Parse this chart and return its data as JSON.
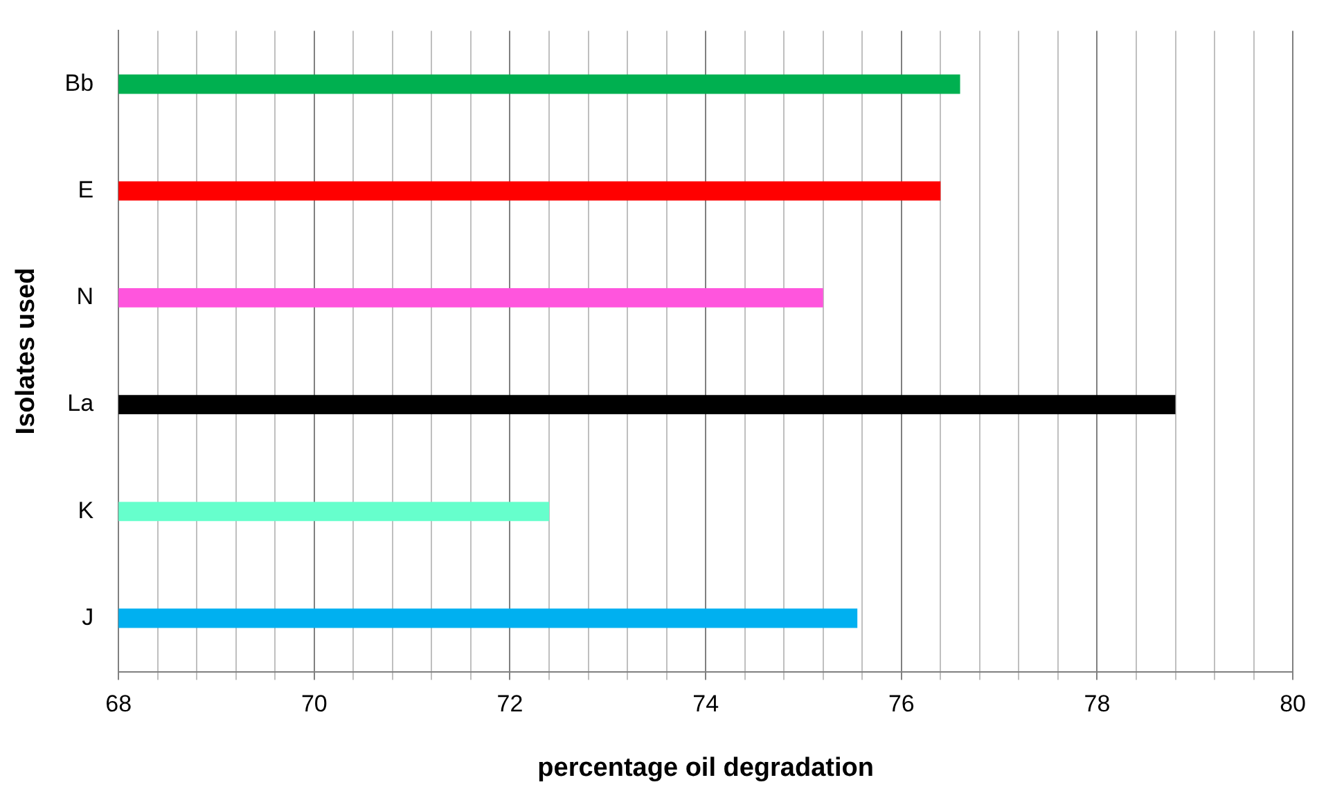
{
  "chart_data": {
    "type": "bar",
    "orientation": "horizontal",
    "xlabel": "percentage oil degradation",
    "ylabel": "Isolates used",
    "categories": [
      "Bb",
      "E",
      "N",
      "La",
      "K",
      "J"
    ],
    "values": [
      76.6,
      76.4,
      75.2,
      78.8,
      72.4,
      75.55
    ],
    "colors": [
      "#00b050",
      "#ff0000",
      "#ff55dd",
      "#000000",
      "#66ffcc",
      "#00b0f0"
    ],
    "xlim": [
      68,
      80
    ],
    "xticks": [
      68,
      {
        "value": 68.4,
        "label": null
      },
      {
        "value": 68.8,
        "label": null
      },
      {
        "value": 69.2,
        "label": null
      },
      {
        "value": 69.6,
        "label": null
      },
      70,
      {
        "value": 70.4,
        "label": null
      },
      {
        "value": 70.8,
        "label": null
      },
      {
        "value": 71.2,
        "label": null
      },
      {
        "value": 71.6,
        "label": null
      },
      72,
      {
        "value": 72.4,
        "label": null
      },
      {
        "value": 72.8,
        "label": null
      },
      {
        "value": 73.2,
        "label": null
      },
      {
        "value": 73.6,
        "label": null
      },
      74,
      {
        "value": 74.4,
        "label": null
      },
      {
        "value": 74.8,
        "label": null
      },
      {
        "value": 75.2,
        "label": null
      },
      {
        "value": 75.6,
        "label": null
      },
      76,
      {
        "value": 76.4,
        "label": null
      },
      {
        "value": 76.8,
        "label": null
      },
      {
        "value": 77.2,
        "label": null
      },
      {
        "value": 77.6,
        "label": null
      },
      78,
      {
        "value": 78.4,
        "label": null
      },
      {
        "value": 78.8,
        "label": null
      },
      {
        "value": 79.2,
        "label": null
      },
      {
        "value": 79.6,
        "label": null
      },
      80
    ],
    "grid": "x",
    "legend": false
  }
}
